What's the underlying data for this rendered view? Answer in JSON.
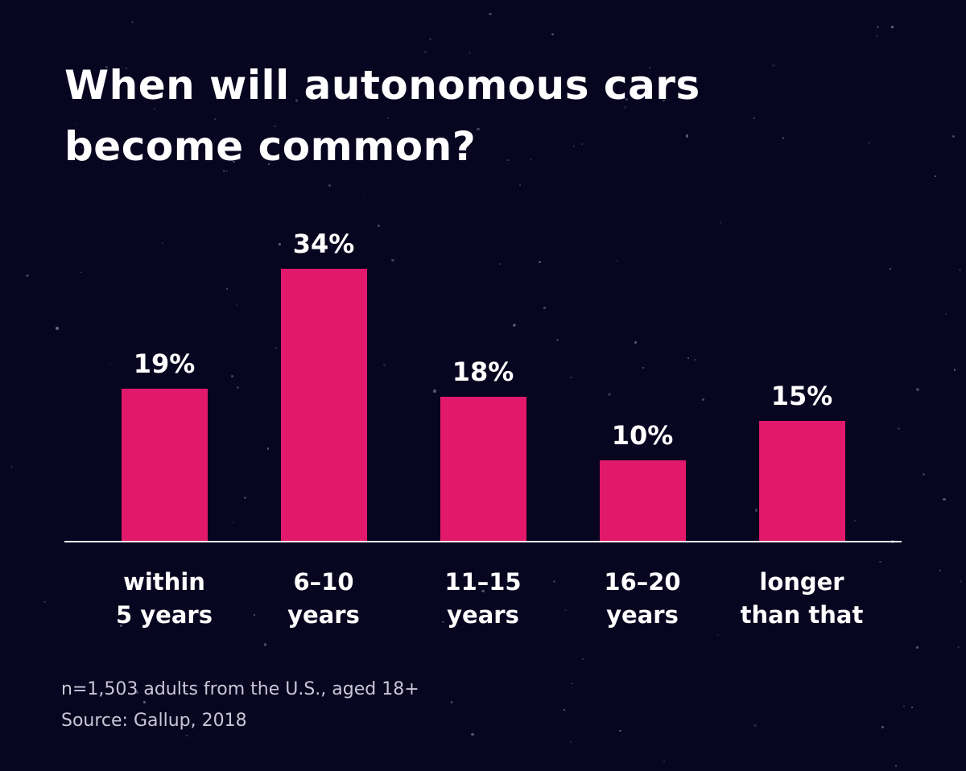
{
  "title_lines": [
    "When will autonomous cars",
    "become common?"
  ],
  "chart_data": {
    "type": "bar",
    "title": "When will autonomous cars become common?",
    "categories": [
      "within 5 years",
      "6–10 years",
      "11–15 years",
      "16–20 years",
      "longer than that"
    ],
    "category_lines": [
      [
        "within",
        "5 years"
      ],
      [
        "6–10",
        "years"
      ],
      [
        "11–15",
        "years"
      ],
      [
        "16–20",
        "years"
      ],
      [
        "longer",
        "than that"
      ]
    ],
    "values": [
      19,
      34,
      18,
      10,
      15
    ],
    "value_labels": [
      "19%",
      "34%",
      "18%",
      "10%",
      "15%"
    ],
    "unit": "%",
    "xlabel": "",
    "ylabel": "",
    "ylim": [
      0,
      40
    ],
    "grid": false,
    "legend": "none",
    "bar_color": "#e2196b"
  },
  "footnotes": [
    "n=1,503 adults from the U.S., aged 18+",
    "Source: Gallup, 2018"
  ],
  "colors": {
    "background": "#07051f",
    "bar": "#e2196b",
    "title_text": "#ffffff",
    "label_text": "#ffffff",
    "footnote_text": "#c9c6d8",
    "axis_line": "#f4f3f8",
    "star": "#b0aecd"
  }
}
